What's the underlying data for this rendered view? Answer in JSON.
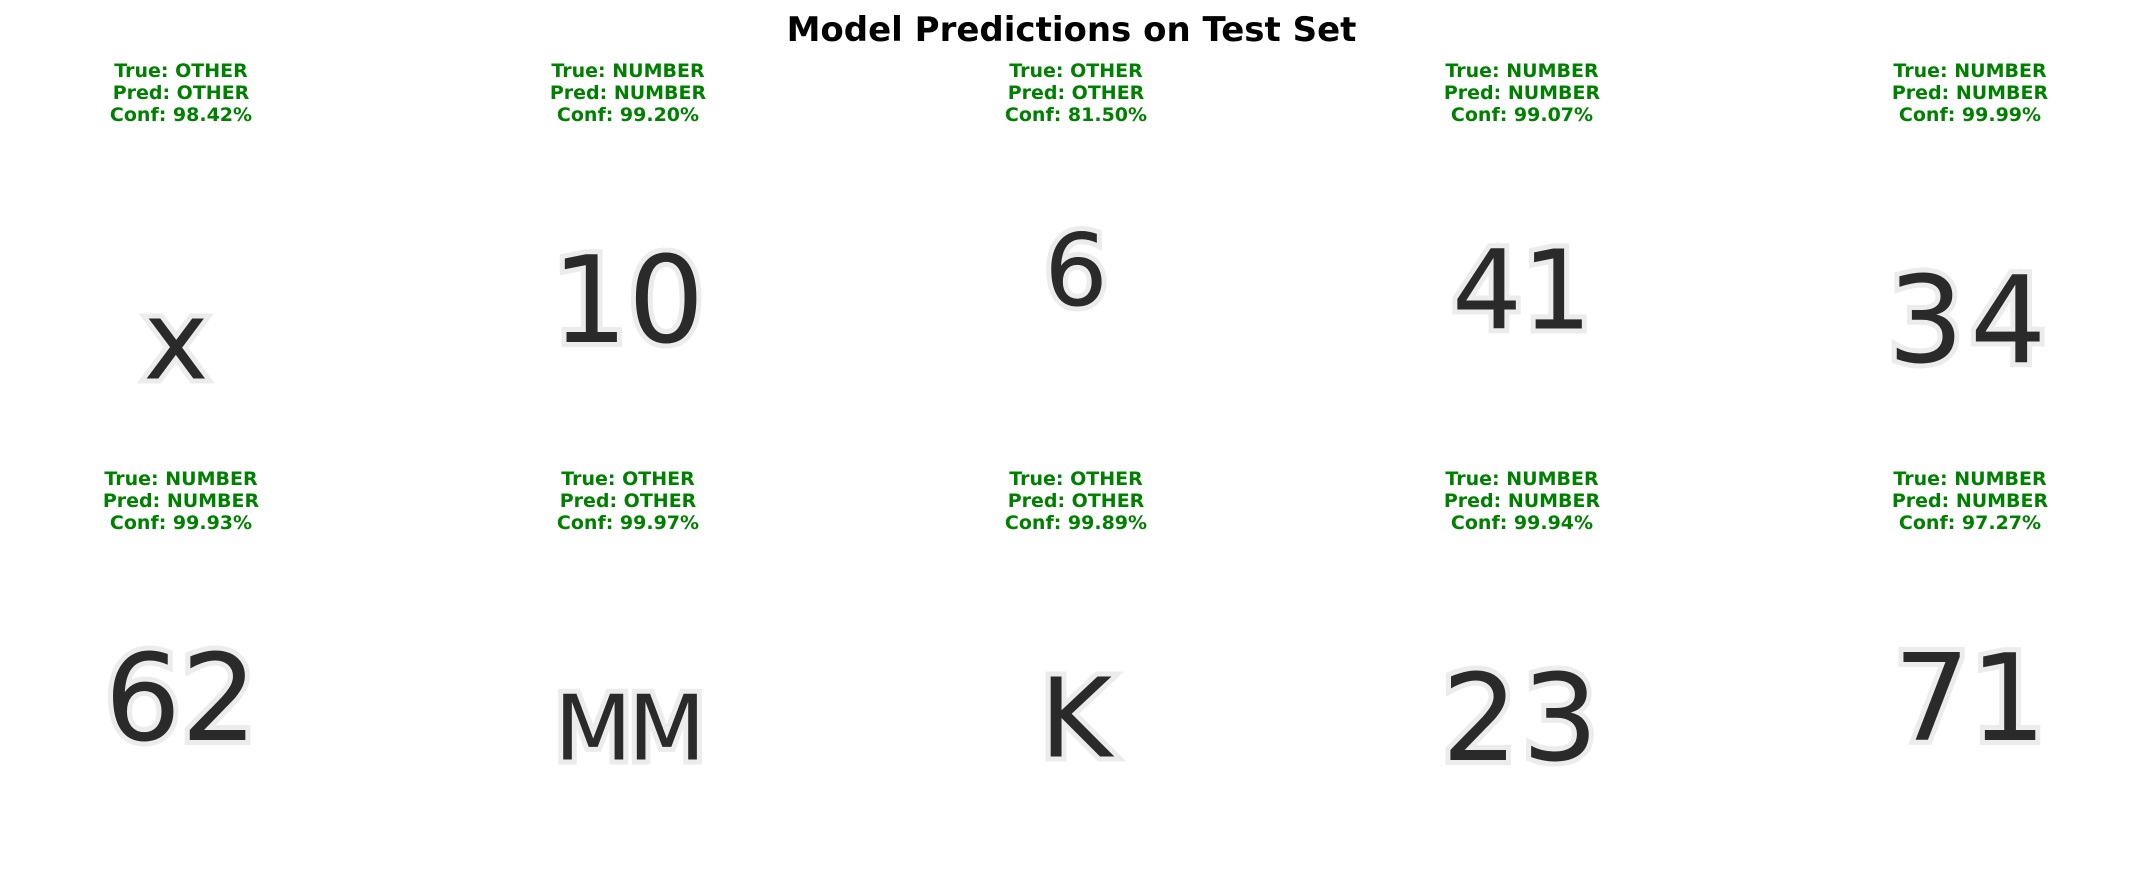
{
  "chart_data": {
    "type": "image-grid",
    "title": "Model Predictions on Test Set",
    "correct_color": "#008000",
    "panels": [
      {
        "true_label": "True: OTHER",
        "pred_label": "Pred: OTHER",
        "conf_label": "Conf: 98.42%",
        "confidence": 98.42,
        "glyph": "x"
      },
      {
        "true_label": "True: NUMBER",
        "pred_label": "Pred: NUMBER",
        "conf_label": "Conf: 99.20%",
        "confidence": 99.2,
        "glyph": "10"
      },
      {
        "true_label": "True: OTHER",
        "pred_label": "Pred: OTHER",
        "conf_label": "Conf: 81.50%",
        "confidence": 81.5,
        "glyph": "6"
      },
      {
        "true_label": "True: NUMBER",
        "pred_label": "Pred: NUMBER",
        "conf_label": "Conf: 99.07%",
        "confidence": 99.07,
        "glyph": "41"
      },
      {
        "true_label": "True: NUMBER",
        "pred_label": "Pred: NUMBER",
        "conf_label": "Conf: 99.99%",
        "confidence": 99.99,
        "glyph": "34"
      },
      {
        "true_label": "True: NUMBER",
        "pred_label": "Pred: NUMBER",
        "conf_label": "Conf: 99.93%",
        "confidence": 99.93,
        "glyph": "62"
      },
      {
        "true_label": "True: OTHER",
        "pred_label": "Pred: OTHER",
        "conf_label": "Conf: 99.97%",
        "confidence": 99.97,
        "glyph": "MM"
      },
      {
        "true_label": "True: OTHER",
        "pred_label": "Pred: OTHER",
        "conf_label": "Conf: 99.89%",
        "confidence": 99.89,
        "glyph": "K"
      },
      {
        "true_label": "True: NUMBER",
        "pred_label": "Pred: NUMBER",
        "conf_label": "Conf: 99.94%",
        "confidence": 99.94,
        "glyph": "23"
      },
      {
        "true_label": "True: NUMBER",
        "pred_label": "Pred: NUMBER",
        "conf_label": "Conf: 97.27%",
        "confidence": 97.27,
        "glyph": "71"
      }
    ]
  }
}
